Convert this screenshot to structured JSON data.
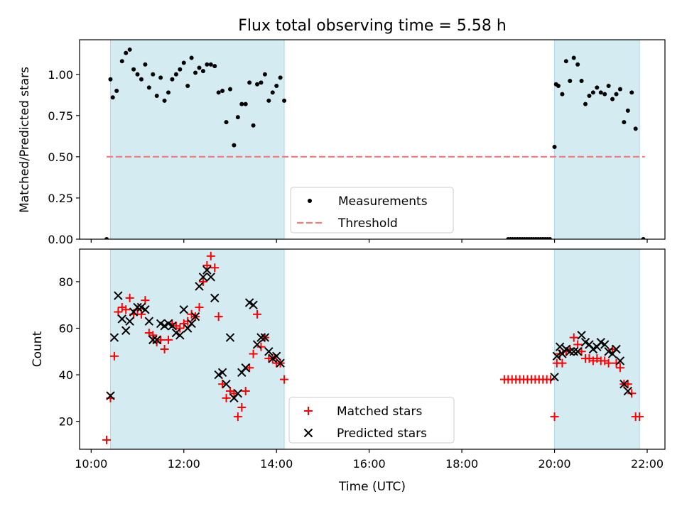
{
  "chart_data": [
    {
      "type": "scatter",
      "title": "Flux total observing time = 5.58 h",
      "xlabel": "",
      "ylabel": "Matched/Predicted stars",
      "xlim": [
        "10:00",
        "22:00"
      ],
      "xlim_minutes_utc": [
        585,
        1343
      ],
      "ylim": [
        0,
        1.21
      ],
      "yticks": [
        "0.00",
        "0.25",
        "0.50",
        "0.75",
        "1.00"
      ],
      "ytick_values": [
        0,
        0.25,
        0.5,
        0.75,
        1.0
      ],
      "shaded_intervals": [
        [
          "10:25",
          "14:10"
        ],
        [
          "20:00",
          "21:50"
        ]
      ],
      "legend": {
        "placement": "lower center",
        "entries": [
          "Measurements",
          "Threshold"
        ]
      },
      "threshold": {
        "name": "Threshold",
        "value": 0.5,
        "x": [
          "10:20",
          "21:57"
        ],
        "color": "#f08080",
        "style": "dashed"
      },
      "series": [
        {
          "name": "Measurements",
          "marker": "dot",
          "color": "#000000",
          "points": [
            [
              "10:20",
              0
            ],
            [
              "10:25",
              0.97
            ],
            [
              "10:28",
              0.86
            ],
            [
              "10:33",
              0.9
            ],
            [
              "10:40",
              1.08
            ],
            [
              "10:45",
              1.13
            ],
            [
              "10:50",
              1.15
            ],
            [
              "10:55",
              1.03
            ],
            [
              "11:00",
              1.0
            ],
            [
              "11:05",
              0.97
            ],
            [
              "11:10",
              1.06
            ],
            [
              "11:15",
              0.92
            ],
            [
              "11:20",
              1.0
            ],
            [
              "11:25",
              0.87
            ],
            [
              "11:30",
              0.98
            ],
            [
              "11:35",
              0.84
            ],
            [
              "11:40",
              0.89
            ],
            [
              "11:45",
              0.97
            ],
            [
              "11:50",
              1.0
            ],
            [
              "11:55",
              1.03
            ],
            [
              "12:00",
              1.07
            ],
            [
              "12:05",
              0.93
            ],
            [
              "12:10",
              1.1
            ],
            [
              "12:15",
              1.01
            ],
            [
              "12:20",
              1.04
            ],
            [
              "12:25",
              1.02
            ],
            [
              "12:30",
              1.06
            ],
            [
              "12:35",
              1.06
            ],
            [
              "12:40",
              1.05
            ],
            [
              "12:45",
              0.89
            ],
            [
              "12:50",
              0.9
            ],
            [
              "12:55",
              0.71
            ],
            [
              "13:00",
              0.91
            ],
            [
              "13:05",
              0.57
            ],
            [
              "13:10",
              0.74
            ],
            [
              "13:15",
              0.82
            ],
            [
              "13:20",
              0.82
            ],
            [
              "13:25",
              0.95
            ],
            [
              "13:30",
              0.69
            ],
            [
              "13:35",
              0.94
            ],
            [
              "13:40",
              0.95
            ],
            [
              "13:45",
              1.0
            ],
            [
              "13:50",
              0.84
            ],
            [
              "13:55",
              0.89
            ],
            [
              "14:00",
              0.93
            ],
            [
              "14:05",
              0.98
            ],
            [
              "14:10",
              0.84
            ],
            [
              "19:00",
              0
            ],
            [
              "19:03",
              0
            ],
            [
              "19:06",
              0
            ],
            [
              "19:09",
              0
            ],
            [
              "19:12",
              0
            ],
            [
              "19:15",
              0
            ],
            [
              "19:18",
              0
            ],
            [
              "19:21",
              0
            ],
            [
              "19:24",
              0
            ],
            [
              "19:27",
              0
            ],
            [
              "19:30",
              0
            ],
            [
              "19:33",
              0
            ],
            [
              "19:36",
              0
            ],
            [
              "19:39",
              0
            ],
            [
              "19:42",
              0
            ],
            [
              "19:45",
              0
            ],
            [
              "19:48",
              0
            ],
            [
              "19:51",
              0
            ],
            [
              "19:54",
              0
            ],
            [
              "20:00",
              0.56
            ],
            [
              "20:02",
              0.94
            ],
            [
              "20:05",
              0.93
            ],
            [
              "20:10",
              0.88
            ],
            [
              "20:15",
              1.08
            ],
            [
              "20:20",
              0.96
            ],
            [
              "20:25",
              1.1
            ],
            [
              "20:30",
              1.06
            ],
            [
              "20:35",
              0.96
            ],
            [
              "20:40",
              0.82
            ],
            [
              "20:45",
              0.87
            ],
            [
              "20:50",
              0.89
            ],
            [
              "20:55",
              0.92
            ],
            [
              "21:00",
              0.89
            ],
            [
              "21:05",
              0.88
            ],
            [
              "21:10",
              0.93
            ],
            [
              "21:15",
              0.85
            ],
            [
              "21:20",
              0.88
            ],
            [
              "21:25",
              0.91
            ],
            [
              "21:30",
              0.71
            ],
            [
              "21:35",
              0.78
            ],
            [
              "21:40",
              0.89
            ],
            [
              "21:45",
              0.67
            ],
            [
              "21:55",
              0
            ]
          ]
        }
      ]
    },
    {
      "type": "scatter",
      "title": "",
      "xlabel": "Time (UTC)",
      "ylabel": "Count",
      "xlim": [
        "10:00",
        "22:00"
      ],
      "xlim_minutes_utc": [
        585,
        1343
      ],
      "ylim": [
        8,
        94
      ],
      "xticks": [
        "10:00",
        "12:00",
        "14:00",
        "16:00",
        "18:00",
        "20:00",
        "22:00"
      ],
      "yticks": [
        "20",
        "40",
        "60",
        "80"
      ],
      "ytick_values": [
        20,
        40,
        60,
        80
      ],
      "shaded_intervals": [
        [
          "10:25",
          "14:10"
        ],
        [
          "20:00",
          "21:50"
        ]
      ],
      "legend": {
        "placement": "lower center",
        "entries": [
          "Matched stars",
          "Predicted stars"
        ]
      },
      "series": [
        {
          "name": "Matched stars",
          "marker": "plus",
          "color": "#ff0000",
          "points": [
            [
              "10:20",
              12
            ],
            [
              "10:25",
              30
            ],
            [
              "10:30",
              48
            ],
            [
              "10:35",
              67
            ],
            [
              "10:40",
              69
            ],
            [
              "10:45",
              68
            ],
            [
              "10:50",
              73
            ],
            [
              "10:55",
              66
            ],
            [
              "11:00",
              68
            ],
            [
              "11:05",
              66
            ],
            [
              "11:10",
              72
            ],
            [
              "11:15",
              58
            ],
            [
              "11:20",
              57
            ],
            [
              "11:25",
              54
            ],
            [
              "11:30",
              55
            ],
            [
              "11:35",
              51
            ],
            [
              "11:40",
              55
            ],
            [
              "11:45",
              62
            ],
            [
              "11:50",
              61
            ],
            [
              "11:55",
              60
            ],
            [
              "12:00",
              62
            ],
            [
              "12:05",
              63
            ],
            [
              "12:10",
              66
            ],
            [
              "12:15",
              65
            ],
            [
              "12:20",
              69
            ],
            [
              "12:25",
              80
            ],
            [
              "12:30",
              87
            ],
            [
              "12:35",
              91
            ],
            [
              "12:40",
              86
            ],
            [
              "12:45",
              65
            ],
            [
              "12:50",
              36
            ],
            [
              "12:55",
              30
            ],
            [
              "13:00",
              33
            ],
            [
              "13:05",
              32
            ],
            [
              "13:10",
              22
            ],
            [
              "13:15",
              26
            ],
            [
              "13:20",
              33
            ],
            [
              "13:25",
              43
            ],
            [
              "13:30",
              49
            ],
            [
              "13:35",
              66
            ],
            [
              "13:40",
              52
            ],
            [
              "13:45",
              56
            ],
            [
              "13:50",
              47
            ],
            [
              "13:55",
              47
            ],
            [
              "14:00",
              45
            ],
            [
              "14:05",
              45
            ],
            [
              "14:10",
              38
            ],
            [
              "18:55",
              38
            ],
            [
              "19:00",
              38
            ],
            [
              "19:05",
              38
            ],
            [
              "19:10",
              38
            ],
            [
              "19:15",
              38
            ],
            [
              "19:20",
              38
            ],
            [
              "19:25",
              38
            ],
            [
              "19:30",
              38
            ],
            [
              "19:35",
              38
            ],
            [
              "19:40",
              38
            ],
            [
              "19:45",
              38
            ],
            [
              "19:50",
              38
            ],
            [
              "19:55",
              38
            ],
            [
              "20:00",
              22
            ],
            [
              "20:03",
              45
            ],
            [
              "20:07",
              49
            ],
            [
              "20:10",
              45
            ],
            [
              "20:15",
              50
            ],
            [
              "20:20",
              51
            ],
            [
              "20:25",
              56
            ],
            [
              "20:30",
              53
            ],
            [
              "20:35",
              50
            ],
            [
              "20:40",
              47
            ],
            [
              "20:45",
              47
            ],
            [
              "20:50",
              46
            ],
            [
              "20:55",
              47
            ],
            [
              "21:00",
              46
            ],
            [
              "21:05",
              46
            ],
            [
              "21:10",
              45
            ],
            [
              "21:15",
              51
            ],
            [
              "21:20",
              45
            ],
            [
              "21:25",
              43
            ],
            [
              "21:30",
              36
            ],
            [
              "21:35",
              36
            ],
            [
              "21:40",
              32
            ],
            [
              "21:45",
              22
            ],
            [
              "21:50",
              22
            ]
          ]
        },
        {
          "name": "Predicted stars",
          "marker": "x",
          "color": "#000000",
          "points": [
            [
              "10:25",
              31
            ],
            [
              "10:30",
              56
            ],
            [
              "10:35",
              74
            ],
            [
              "10:40",
              64
            ],
            [
              "10:45",
              59
            ],
            [
              "10:50",
              63
            ],
            [
              "10:55",
              67
            ],
            [
              "11:00",
              69
            ],
            [
              "11:05",
              69
            ],
            [
              "11:10",
              68
            ],
            [
              "11:15",
              63
            ],
            [
              "11:20",
              55
            ],
            [
              "11:25",
              55
            ],
            [
              "11:30",
              62
            ],
            [
              "11:35",
              61
            ],
            [
              "11:40",
              62
            ],
            [
              "11:45",
              61
            ],
            [
              "11:50",
              58
            ],
            [
              "11:55",
              57
            ],
            [
              "12:00",
              68
            ],
            [
              "12:05",
              60
            ],
            [
              "12:10",
              62
            ],
            [
              "12:15",
              65
            ],
            [
              "12:20",
              78
            ],
            [
              "12:25",
              82
            ],
            [
              "12:30",
              85
            ],
            [
              "12:35",
              82
            ],
            [
              "12:40",
              73
            ],
            [
              "12:45",
              40
            ],
            [
              "12:50",
              41
            ],
            [
              "12:55",
              36
            ],
            [
              "13:00",
              56
            ],
            [
              "13:05",
              30
            ],
            [
              "13:10",
              32
            ],
            [
              "13:15",
              41
            ],
            [
              "13:20",
              43
            ],
            [
              "13:25",
              71
            ],
            [
              "13:30",
              70
            ],
            [
              "13:35",
              53
            ],
            [
              "13:40",
              56
            ],
            [
              "13:45",
              56
            ],
            [
              "13:50",
              50
            ],
            [
              "13:55",
              47
            ],
            [
              "14:00",
              48
            ],
            [
              "14:05",
              45
            ],
            [
              "20:00",
              39
            ],
            [
              "20:03",
              48
            ],
            [
              "20:07",
              52
            ],
            [
              "20:10",
              49
            ],
            [
              "20:15",
              51
            ],
            [
              "20:20",
              50
            ],
            [
              "20:25",
              50
            ],
            [
              "20:30",
              50
            ],
            [
              "20:35",
              57
            ],
            [
              "20:40",
              54
            ],
            [
              "20:45",
              53
            ],
            [
              "20:50",
              51
            ],
            [
              "20:55",
              52
            ],
            [
              "21:00",
              54
            ],
            [
              "21:05",
              53
            ],
            [
              "21:10",
              50
            ],
            [
              "21:15",
              49
            ],
            [
              "21:20",
              51
            ],
            [
              "21:25",
              46
            ],
            [
              "21:30",
              36
            ],
            [
              "21:35",
              33
            ]
          ]
        }
      ]
    }
  ],
  "colors": {
    "shade": "#d4ebf1",
    "shade_edge": "#add8e6",
    "threshold": "#f08080",
    "matched": "#ff0000",
    "predicted": "#000000",
    "measurements": "#000000"
  }
}
